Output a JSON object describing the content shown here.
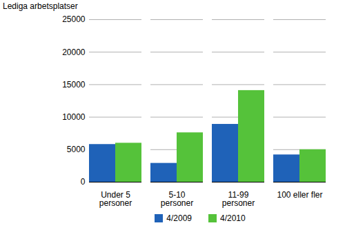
{
  "chart_data": {
    "type": "bar",
    "y_label": "Lediga arbetsplatser",
    "categories": [
      "Under 5\npersoner",
      "5-10\npersoner",
      "11-99\npersoner",
      "100 eller fler"
    ],
    "series": [
      {
        "name": "4/2009",
        "color": "#1f62b8",
        "values": [
          5800,
          2900,
          8900,
          4200
        ]
      },
      {
        "name": "4/2010",
        "color": "#55c23a",
        "values": [
          6000,
          7600,
          14100,
          5000
        ]
      }
    ],
    "ylim": [
      0,
      25000
    ],
    "yticks": [
      0,
      5000,
      10000,
      15000,
      20000,
      25000
    ],
    "grid": true,
    "legend": "bottom"
  }
}
